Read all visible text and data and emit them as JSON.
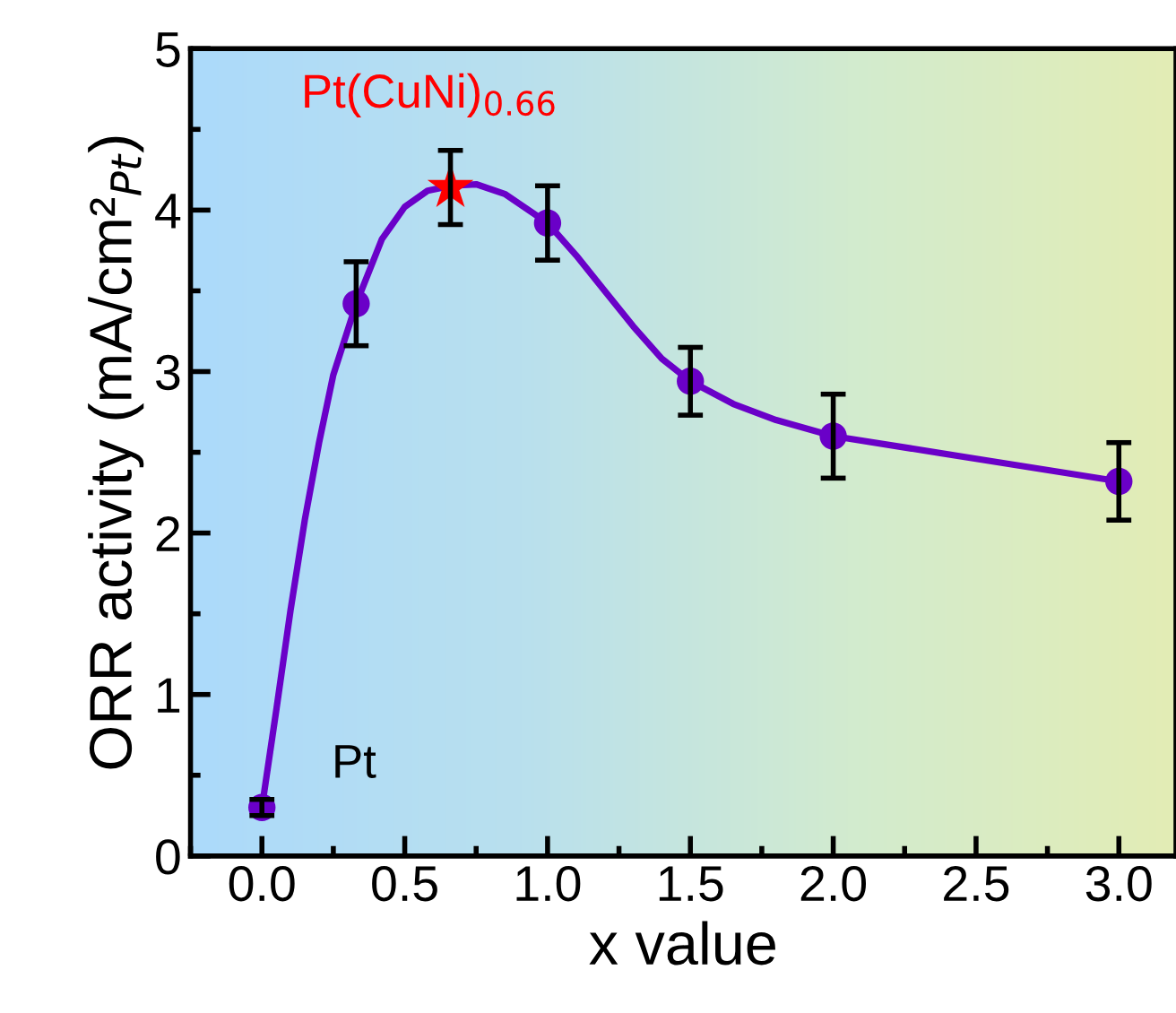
{
  "chart_data": {
    "type": "line",
    "xlabel": "x value",
    "ylabel": "ORR activity (mA/cm²$_{Pt}$)",
    "xlim": [
      -0.25,
      3.2
    ],
    "ylim": [
      0,
      5
    ],
    "xticks": [
      {
        "value": 0,
        "label": "0.0"
      },
      0.5,
      {
        "value": 1,
        "label": "1.0"
      },
      1.5,
      {
        "value": 2,
        "label": "2.0"
      },
      2.5,
      {
        "value": 3,
        "label": "3.0"
      }
    ],
    "yticks": [
      0,
      1,
      2,
      3,
      4,
      5
    ],
    "grid": false,
    "legend": false,
    "series": [
      {
        "color": "#6a00c8",
        "marker": "none",
        "x": [
          0,
          0.05,
          0.1,
          0.15,
          0.2,
          0.25,
          0.33,
          0.42,
          0.5,
          0.58,
          0.66,
          0.75,
          0.85,
          1,
          1.1,
          1.2,
          1.3,
          1.4,
          1.5,
          1.65,
          1.8,
          2,
          2.5,
          3
        ],
        "values": [
          0.3,
          0.9,
          1.52,
          2.08,
          2.56,
          2.98,
          3.42,
          3.82,
          4.02,
          4.12,
          4.15,
          4.16,
          4.1,
          3.92,
          3.72,
          3.5,
          3.28,
          3.08,
          2.94,
          2.8,
          2.7,
          2.6,
          2.46,
          2.32
        ]
      },
      {
        "type": "scatter",
        "color": "#6a00c8",
        "marker": "circle",
        "x": [
          0,
          0.33,
          1,
          1.5,
          2,
          3
        ],
        "values": [
          0.3,
          3.42,
          3.92,
          2.94,
          2.6,
          2.32
        ],
        "errors": [
          0.05,
          0.26,
          0.23,
          0.21,
          0.26,
          0.24
        ]
      },
      {
        "type": "scatter",
        "color": "#ff0000",
        "marker": "star",
        "x": [
          0.66
        ],
        "values": [
          4.14
        ],
        "errors": [
          0.23
        ]
      }
    ],
    "annotations": [
      {
        "text": "Pt",
        "x": 0,
        "y": 0.3
      },
      {
        "text": "Pt(CuNi)$_{0.66}$",
        "x": 0.66,
        "y": 4.14
      }
    ]
  }
}
